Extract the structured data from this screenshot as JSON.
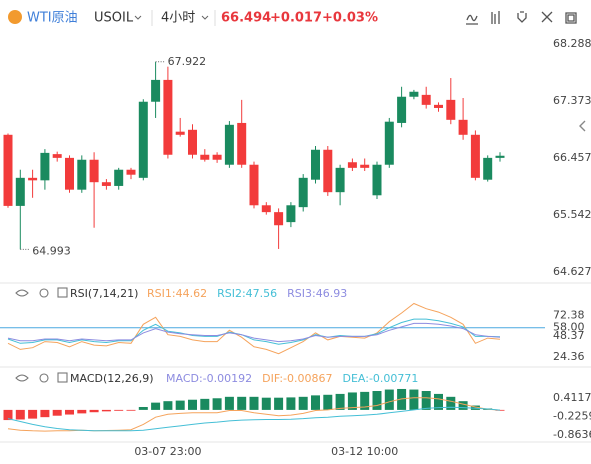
{
  "header": {
    "name": "WTI原油",
    "symbol": "USOIL",
    "interval": "4小时",
    "price": "66.494",
    "change": "+0.017",
    "change_pct": "+0.03%"
  },
  "chart_data": [
    {
      "type": "candlestick",
      "categories": [
        null,
        null,
        null,
        null,
        null,
        null,
        null,
        null,
        null,
        null,
        null,
        null,
        null,
        "03-07 23:00",
        null,
        null,
        null,
        null,
        null,
        null,
        null,
        null,
        null,
        null,
        null,
        null,
        null,
        null,
        null,
        "03-12 10:00",
        null,
        null,
        null,
        null,
        null,
        null,
        null,
        null,
        null,
        null,
        null
      ],
      "open": [
        66.83,
        65.69,
        66.14,
        66.1,
        66.52,
        66.46,
        65.95,
        66.43,
        66.07,
        66.01,
        66.27,
        66.14,
        67.36,
        67.71,
        66.88,
        66.91,
        66.51,
        66.51,
        66.35,
        67.02,
        66.35,
        65.7,
        65.59,
        65.43,
        65.67,
        66.11,
        66.59,
        65.91,
        66.39,
        66.35,
        65.86,
        66.35,
        67.02,
        67.44,
        67.47,
        67.31,
        67.39,
        67.07,
        66.83,
        66.11,
        66.46
      ],
      "high": [
        66.85,
        66.27,
        66.27,
        66.6,
        66.56,
        66.5,
        66.5,
        66.55,
        66.12,
        66.3,
        66.3,
        67.4,
        68.0,
        67.922,
        67.1,
        67.0,
        66.6,
        66.55,
        67.05,
        67.39,
        66.4,
        65.75,
        65.65,
        65.75,
        66.2,
        66.65,
        66.65,
        66.35,
        66.45,
        66.45,
        66.4,
        67.1,
        67.6,
        67.55,
        67.6,
        67.35,
        67.74,
        67.42,
        66.9,
        66.5,
        66.55
      ],
      "low": [
        65.66,
        64.993,
        65.82,
        65.95,
        66.4,
        65.9,
        65.9,
        65.34,
        65.95,
        65.95,
        66.12,
        66.1,
        67.1,
        66.45,
        66.8,
        66.45,
        66.4,
        66.38,
        66.3,
        66.3,
        65.65,
        65.55,
        65.0,
        65.35,
        65.6,
        66.05,
        65.85,
        65.7,
        66.25,
        66.25,
        65.8,
        66.3,
        66.95,
        67.4,
        67.25,
        67.2,
        67.0,
        66.75,
        66.1,
        66.08,
        66.4
      ],
      "close": [
        65.69,
        66.14,
        66.1,
        66.54,
        66.46,
        65.95,
        66.43,
        66.07,
        66.01,
        66.27,
        66.19,
        67.36,
        67.71,
        66.51,
        66.83,
        66.51,
        66.43,
        66.43,
        66.99,
        66.35,
        65.7,
        65.59,
        65.38,
        65.7,
        66.14,
        66.59,
        65.91,
        66.3,
        66.3,
        66.3,
        66.35,
        67.04,
        67.44,
        67.52,
        67.31,
        67.26,
        67.07,
        66.83,
        66.14,
        66.46,
        66.494
      ],
      "high_label": "67.922",
      "low_label": "64.993",
      "up_color": "#1a8a5f",
      "down_color": "#f23b3b",
      "ylim": [
        64.47,
        68.51
      ],
      "yticks": [
        68.288,
        67.373,
        66.457,
        65.542,
        64.627
      ]
    },
    {
      "type": "line",
      "title": "RSI(7,14,21)",
      "series": [
        {
          "name": "RSI1:44.62",
          "color": "#f5a35c",
          "values": [
            40,
            33,
            35,
            42,
            41,
            36,
            42,
            38,
            37,
            41,
            40,
            62,
            70,
            50,
            48,
            44,
            42,
            42,
            55,
            47,
            36,
            33,
            28,
            35,
            42,
            52,
            44,
            48,
            47,
            46,
            52,
            65,
            75,
            86,
            80,
            76,
            70,
            62,
            40,
            46,
            44.62
          ]
        },
        {
          "name": "RSI2:47.56",
          "color": "#45bfd6",
          "values": [
            45,
            40,
            41,
            44,
            44,
            41,
            44,
            42,
            41,
            43,
            43,
            55,
            62,
            54,
            52,
            49,
            48,
            48,
            53,
            50,
            44,
            42,
            39,
            41,
            44,
            50,
            47,
            49,
            48,
            48,
            51,
            58,
            64,
            68,
            68,
            66,
            63,
            59,
            48,
            48,
            47.56
          ]
        },
        {
          "name": "RSI3:46.93",
          "color": "#8d8ce0",
          "values": [
            46,
            43,
            43,
            45,
            45,
            43,
            45,
            44,
            43,
            44,
            44,
            52,
            57,
            53,
            51,
            50,
            49,
            49,
            52,
            50,
            46,
            44,
            42,
            43,
            45,
            49,
            47,
            48,
            48,
            48,
            50,
            55,
            59,
            63,
            63,
            62,
            60,
            57,
            50,
            48,
            46.93
          ]
        }
      ],
      "reference": {
        "value": 58,
        "label": "58.00",
        "color": "#4aa8e0"
      },
      "ylim": [
        15,
        90
      ],
      "yticks": [
        72.38,
        48.37,
        24.36
      ]
    },
    {
      "type": "macd",
      "title": "MACD(12,26,9)",
      "histogram": {
        "name": "MACD:-0.00192",
        "color": "#8d8ce0",
        "values": [
          -0.35,
          -0.33,
          -0.3,
          -0.25,
          -0.2,
          -0.16,
          -0.12,
          -0.08,
          -0.05,
          -0.03,
          -0.02,
          0.1,
          0.25,
          0.3,
          0.32,
          0.35,
          0.38,
          0.4,
          0.45,
          0.45,
          0.45,
          0.42,
          0.42,
          0.43,
          0.45,
          0.5,
          0.52,
          0.55,
          0.6,
          0.62,
          0.65,
          0.7,
          0.72,
          0.7,
          0.65,
          0.55,
          0.45,
          0.3,
          0.15,
          0.05,
          -0.00192
        ]
      },
      "series": [
        {
          "name": "DIF:-0.00867",
          "color": "#f5a35c",
          "values": [
            -0.65,
            -0.7,
            -0.72,
            -0.73,
            -0.72,
            -0.72,
            -0.7,
            -0.72,
            -0.71,
            -0.7,
            -0.68,
            -0.5,
            -0.25,
            -0.15,
            -0.12,
            -0.1,
            -0.1,
            -0.1,
            -0.02,
            -0.02,
            -0.1,
            -0.15,
            -0.2,
            -0.18,
            -0.12,
            -0.02,
            0,
            0.05,
            0.08,
            0.1,
            0.15,
            0.28,
            0.38,
            0.42,
            0.42,
            0.38,
            0.3,
            0.2,
            0.1,
            0.02,
            -0.00867
          ]
        },
        {
          "name": "DEA:-0.00771",
          "color": "#45bfd6",
          "values": [
            -0.3,
            -0.4,
            -0.5,
            -0.58,
            -0.64,
            -0.68,
            -0.7,
            -0.72,
            -0.72,
            -0.72,
            -0.72,
            -0.7,
            -0.65,
            -0.6,
            -0.55,
            -0.5,
            -0.45,
            -0.42,
            -0.38,
            -0.35,
            -0.34,
            -0.33,
            -0.33,
            -0.32,
            -0.3,
            -0.27,
            -0.25,
            -0.22,
            -0.2,
            -0.18,
            -0.15,
            -0.1,
            -0.05,
            0,
            0.05,
            0.08,
            0.09,
            0.08,
            0.06,
            0.03,
            -0.00771
          ]
        }
      ],
      "up_color": "#1a8a5f",
      "down_color": "#f23b3b",
      "ylim": [
        -1.38,
        0.96
      ],
      "yticks": [
        0.41176,
        -0.22594,
        -0.86364
      ]
    }
  ]
}
